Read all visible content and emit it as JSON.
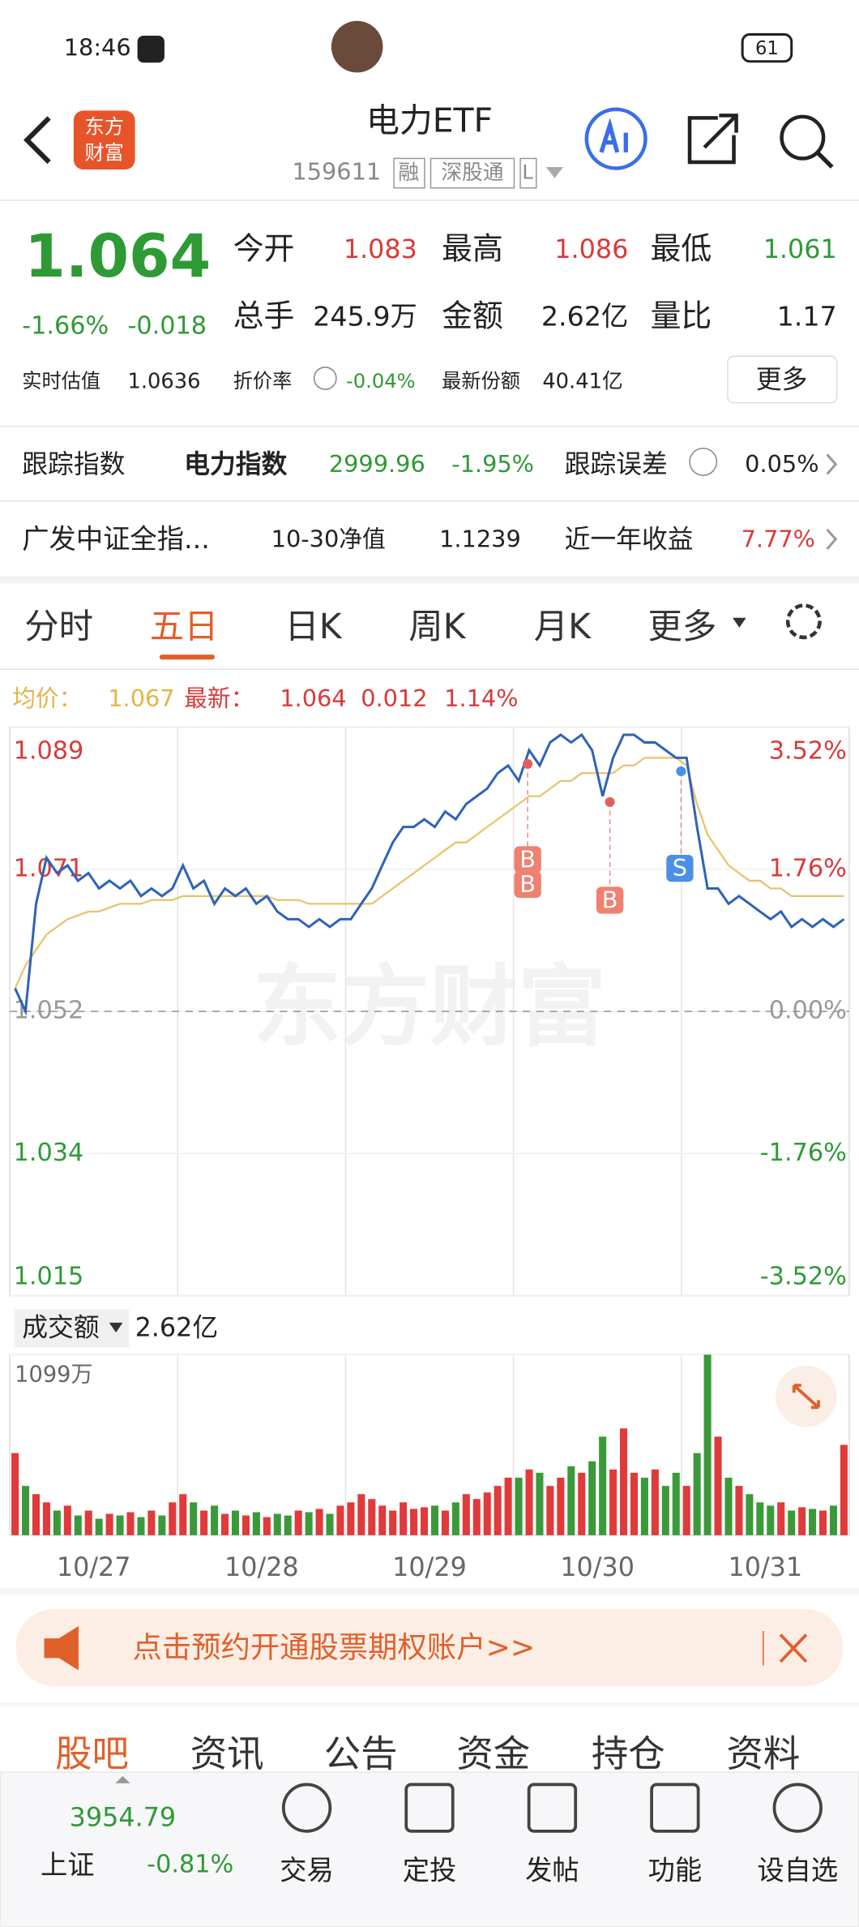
{
  "status_bar": {
    "time": "18:46",
    "battery": "61"
  },
  "header": {
    "logo": [
      "东方",
      "财富"
    ],
    "title": "电力ETF",
    "code": "159611",
    "tags": [
      "融",
      "深股通",
      "L"
    ]
  },
  "quote": {
    "price": "1.064",
    "change_pct": "-1.66%",
    "change": "-0.018",
    "fields": [
      [
        {
          "label": "今开",
          "value": "1.083"
        },
        {
          "label": "最高",
          "value": "1.086"
        },
        {
          "label": "最低",
          "value": "1.061"
        }
      ],
      [
        {
          "label": "总手",
          "value": "245.9万"
        },
        {
          "label": "金额",
          "value": "2.62亿"
        },
        {
          "label": "量比",
          "value": "1.17"
        }
      ]
    ],
    "extra": [
      {
        "label": "实时估值",
        "value": "1.0636"
      },
      {
        "label": "折价率",
        "value": "-0.04%"
      },
      {
        "label": "最新份额",
        "value": "40.41亿"
      }
    ],
    "more": "更多"
  },
  "tracking": {
    "label": "跟踪指数",
    "index": "电力指数",
    "value": "2999.96",
    "change": "-1.95%",
    "error_label": "跟踪误差",
    "error": "0.05%"
  },
  "fund": {
    "name": "广发中证全指...",
    "nav_label": "10-30净值",
    "nav": "1.1239",
    "return_label": "近一年收益",
    "return": "7.77%"
  },
  "tabs": [
    "分时",
    "五日",
    "日K",
    "周K",
    "月K",
    "更多"
  ],
  "active_tab": 1,
  "chart": {
    "type": "line",
    "legend": [
      {
        "label": "均价：",
        "value": "1.067",
        "color": "#e3b54a"
      },
      {
        "label": "最新：",
        "value": "1.064",
        "color": "#d83a3a"
      }
    ],
    "change": "0.012",
    "change_pct": "1.14%",
    "watermark": "东方财富",
    "x_labels": [
      "10/27",
      "10/28",
      "10/29",
      "10/30",
      "10/31"
    ],
    "series": [
      {
        "color": "#2f63b8",
        "values": [
          1.055,
          1.052,
          1.066,
          1.072,
          1.07,
          1.071,
          1.069,
          1.07,
          1.068,
          1.069,
          1.068,
          1.069,
          1.067,
          1.068,
          1.067,
          1.068,
          1.071,
          1.068,
          1.069,
          1.066,
          1.068,
          1.067,
          1.068,
          1.066,
          1.067,
          1.065,
          1.064,
          1.064,
          1.063,
          1.064,
          1.063,
          1.064,
          1.064,
          1.066,
          1.068,
          1.071,
          1.074,
          1.076,
          1.076,
          1.077,
          1.076,
          1.078,
          1.077,
          1.079,
          1.08,
          1.081,
          1.083,
          1.084,
          1.082,
          1.086,
          1.084,
          1.087,
          1.088,
          1.087,
          1.088,
          1.086,
          1.08,
          1.085,
          1.088,
          1.088,
          1.087,
          1.087,
          1.086,
          1.085,
          1.085,
          1.076,
          1.068,
          1.068,
          1.066,
          1.067,
          1.066,
          1.065,
          1.064,
          1.065,
          1.063,
          1.064,
          1.063,
          1.064,
          1.063,
          1.064
        ]
      },
      {
        "color": "#e8c46a",
        "values": [
          1.055,
          1.058,
          1.06,
          1.062,
          1.063,
          1.064,
          1.0645,
          1.065,
          1.065,
          1.0655,
          1.066,
          1.066,
          1.066,
          1.0665,
          1.0665,
          1.0665,
          1.067,
          1.067,
          1.067,
          1.067,
          1.067,
          1.067,
          1.067,
          1.067,
          1.067,
          1.0665,
          1.0665,
          1.0665,
          1.066,
          1.066,
          1.066,
          1.066,
          1.066,
          1.066,
          1.066,
          1.067,
          1.068,
          1.069,
          1.07,
          1.071,
          1.072,
          1.073,
          1.074,
          1.074,
          1.075,
          1.076,
          1.077,
          1.078,
          1.079,
          1.08,
          1.08,
          1.081,
          1.082,
          1.082,
          1.083,
          1.083,
          1.083,
          1.083,
          1.084,
          1.084,
          1.085,
          1.085,
          1.085,
          1.085,
          1.084,
          1.079,
          1.075,
          1.073,
          1.071,
          1.07,
          1.069,
          1.069,
          1.068,
          1.068,
          1.067,
          1.067,
          1.067,
          1.067,
          1.067,
          1.067
        ]
      }
    ],
    "ylim": [
      1.015,
      1.089
    ],
    "yticks": [
      1.089,
      {
        "value": 1.0705,
        "label": "1.071"
      },
      1.052,
      {
        "value": 1.0335,
        "label": "1.034"
      },
      1.015
    ],
    "y2lim": [
      -3.52,
      3.52
    ],
    "y2ticks": [
      {
        "value": 3.52,
        "label": "3.52%"
      },
      {
        "value": 1.76,
        "label": "1.76%"
      },
      {
        "value": 0,
        "label": "0.00%"
      },
      {
        "value": -1.76,
        "label": "-1.76%"
      },
      {
        "value": -3.52,
        "label": "-3.52%"
      }
    ],
    "annotations": [
      "B",
      "B",
      "B",
      "S"
    ]
  },
  "volume": {
    "type": "bar",
    "label": "成交额",
    "total": "2.62亿",
    "up_color": "#e03a3a",
    "down_color": "#3a9a3a",
    "values": [
      500,
      300,
      250,
      200,
      150,
      180,
      120,
      150,
      100,
      130,
      120,
      140,
      110,
      150,
      120,
      200,
      250,
      200,
      150,
      180,
      130,
      150,
      120,
      140,
      110,
      130,
      120,
      150,
      140,
      160,
      130,
      180,
      200,
      250,
      220,
      180,
      150,
      200,
      160,
      170,
      180,
      150,
      200,
      250,
      220,
      260,
      300,
      350,
      350,
      400,
      380,
      300,
      350,
      420,
      380,
      450,
      600,
      400,
      650,
      380,
      350,
      400,
      300,
      380,
      300,
      500,
      1099,
      600,
      350,
      300,
      250,
      200,
      180,
      200,
      150,
      170,
      160,
      150,
      180,
      550
    ],
    "ylim": [
      0,
      1099
    ],
    "yticks": [
      {
        "value": 1099,
        "label": "1099万"
      }
    ]
  },
  "banner": "点击预约开通股票期权账户>>",
  "sub_tabs": [
    "股吧",
    "资讯",
    "公告",
    "资金",
    "持仓",
    "资料"
  ],
  "nav": {
    "index_value": "3954.79",
    "index_name": "上证",
    "index_change": "-0.81%",
    "items": [
      "交易",
      "定投",
      "发帖",
      "功能",
      "设自选"
    ]
  }
}
